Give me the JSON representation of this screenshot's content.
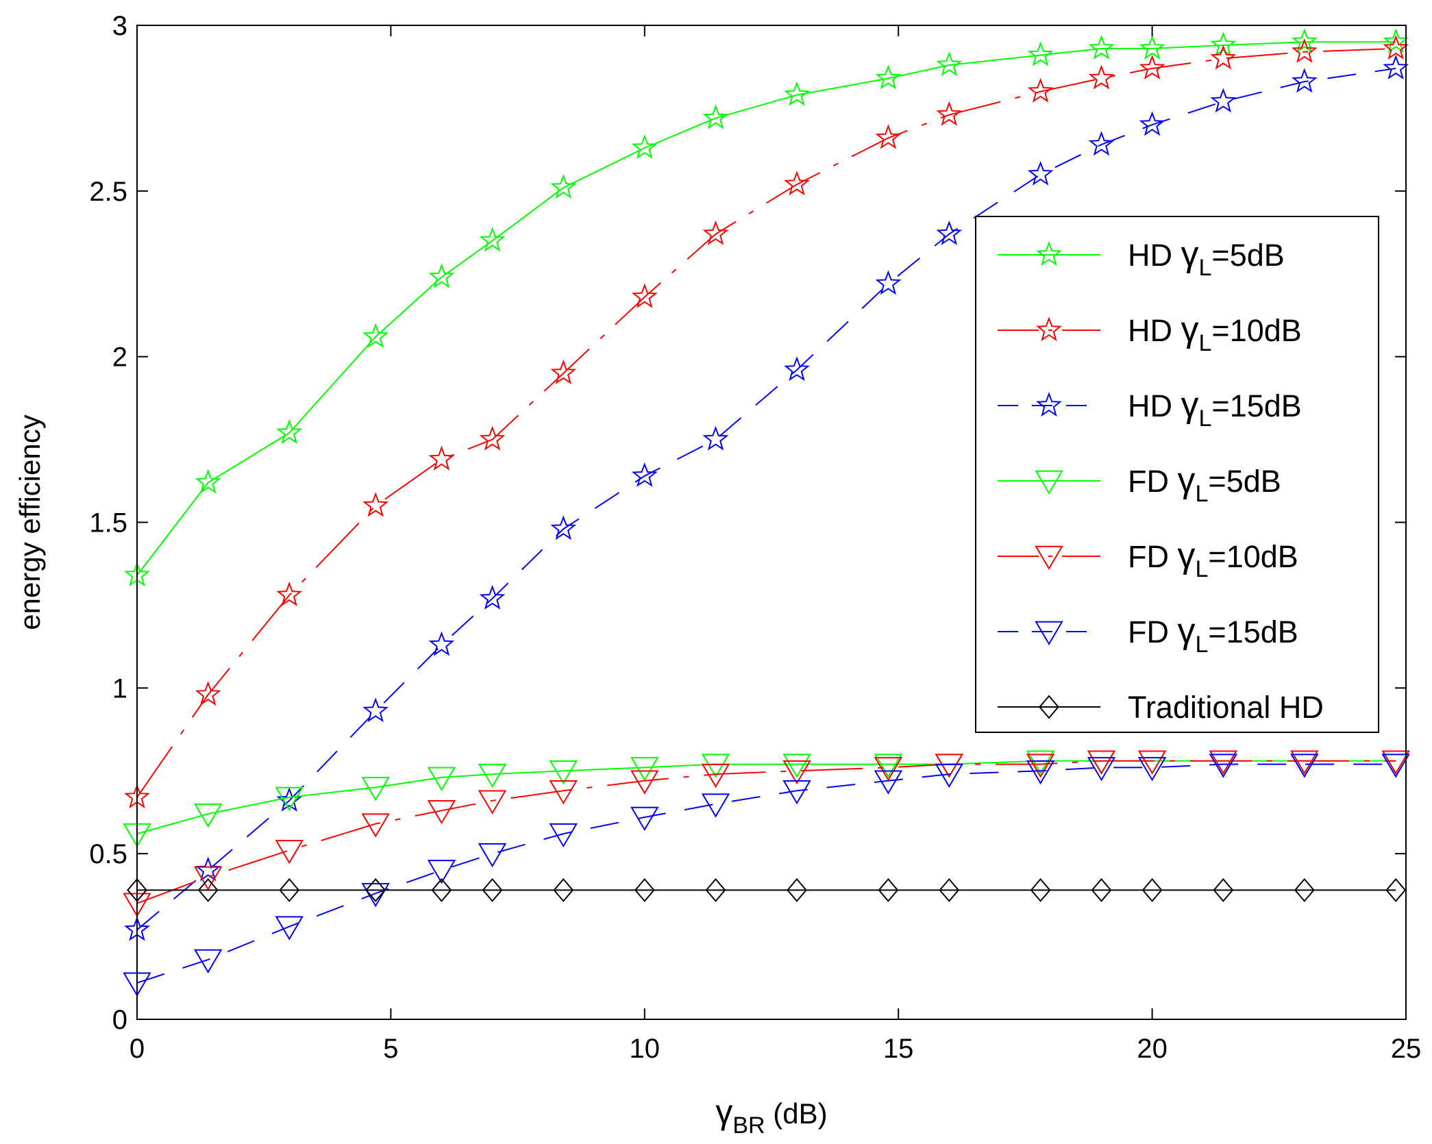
{
  "chart_data": {
    "type": "line",
    "title": "",
    "xlabel": {
      "symbol": "γ",
      "sub": "BR",
      "suffix": " (dB)"
    },
    "ylabel": "energy efficiency",
    "xlim": [
      0,
      25
    ],
    "ylim": [
      0,
      3
    ],
    "xticks": [
      0,
      5,
      10,
      15,
      20,
      25
    ],
    "xtick_labels": [
      "0",
      "5",
      "10",
      "15",
      "20",
      "25"
    ],
    "yticks": [
      0,
      0.5,
      1,
      1.5,
      2,
      2.5,
      3
    ],
    "ytick_labels": [
      "0",
      "0.5",
      "1",
      "1.5",
      "2",
      "2.5",
      "3"
    ],
    "grid": false,
    "legend_position": "right",
    "series": [
      {
        "name": "HD γL=5dB",
        "prefix": "HD ",
        "sub": "L",
        "suffix": "=5dB",
        "color": "#00ff00",
        "marker": "star",
        "dash": "solid",
        "x": [
          0,
          1.4,
          3,
          4.7,
          6,
          7,
          8.4,
          10,
          11.4,
          13,
          14.8,
          16,
          17.8,
          19,
          20,
          21.4,
          23,
          24.8
        ],
        "y": [
          1.34,
          1.62,
          1.77,
          2.06,
          2.24,
          2.35,
          2.51,
          2.63,
          2.72,
          2.79,
          2.84,
          2.88,
          2.91,
          2.93,
          2.93,
          2.94,
          2.95,
          2.95
        ]
      },
      {
        "name": "HD γL=10dB",
        "prefix": "HD ",
        "sub": "L",
        "suffix": "=10dB",
        "color": "#ff0000",
        "marker": "star",
        "dash": "dashdot",
        "x": [
          0,
          1.4,
          3,
          4.7,
          6,
          7,
          8.4,
          10,
          11.4,
          13,
          14.8,
          16,
          17.8,
          19,
          20,
          21.4,
          23,
          24.8
        ],
        "y": [
          0.67,
          0.98,
          1.28,
          1.55,
          1.69,
          1.75,
          1.95,
          2.18,
          2.37,
          2.52,
          2.66,
          2.73,
          2.8,
          2.84,
          2.87,
          2.9,
          2.92,
          2.93
        ]
      },
      {
        "name": "HD γL=15dB",
        "prefix": "HD ",
        "sub": "L",
        "suffix": "=15dB",
        "color": "#0000ff",
        "marker": "star",
        "dash": "dashed",
        "x": [
          0,
          1.4,
          3,
          4.7,
          6,
          7,
          8.4,
          10,
          11.4,
          13,
          14.8,
          16,
          17.8,
          19,
          20,
          21.4,
          23,
          24.8
        ],
        "y": [
          0.27,
          0.45,
          0.66,
          0.93,
          1.13,
          1.27,
          1.48,
          1.64,
          1.75,
          1.96,
          2.22,
          2.37,
          2.55,
          2.64,
          2.7,
          2.77,
          2.83,
          2.87
        ]
      },
      {
        "name": "FD γL=5dB",
        "prefix": "FD ",
        "sub": "L",
        "suffix": "=5dB",
        "color": "#00ff00",
        "marker": "triangle",
        "dash": "solid",
        "x": [
          0,
          1.4,
          3,
          4.7,
          6,
          7,
          8.4,
          10,
          11.4,
          13,
          14.8,
          16,
          17.8,
          19,
          20,
          21.4,
          23,
          24.8
        ],
        "y": [
          0.56,
          0.62,
          0.67,
          0.7,
          0.73,
          0.74,
          0.75,
          0.76,
          0.77,
          0.77,
          0.77,
          0.77,
          0.78,
          0.78,
          0.78,
          0.78,
          0.78,
          0.78
        ]
      },
      {
        "name": "FD γL=10dB",
        "prefix": "FD ",
        "sub": "L",
        "suffix": "=10dB",
        "color": "#ff0000",
        "marker": "triangle",
        "dash": "dashdot",
        "x": [
          0,
          1.4,
          3,
          4.7,
          6,
          7,
          8.4,
          10,
          11.4,
          13,
          14.8,
          16,
          17.8,
          19,
          20,
          21.4,
          23,
          24.8
        ],
        "y": [
          0.35,
          0.43,
          0.51,
          0.59,
          0.63,
          0.66,
          0.69,
          0.72,
          0.74,
          0.75,
          0.76,
          0.77,
          0.77,
          0.78,
          0.78,
          0.78,
          0.78,
          0.78
        ]
      },
      {
        "name": "FD γL=15dB",
        "prefix": "FD ",
        "sub": "L",
        "suffix": "=15dB",
        "color": "#0000ff",
        "marker": "triangle",
        "dash": "dashed",
        "x": [
          0,
          1.4,
          3,
          4.7,
          6,
          7,
          8.4,
          10,
          11.4,
          13,
          14.8,
          16,
          17.8,
          19,
          20,
          21.4,
          23,
          24.8
        ],
        "y": [
          0.11,
          0.18,
          0.28,
          0.38,
          0.45,
          0.5,
          0.56,
          0.61,
          0.65,
          0.69,
          0.72,
          0.74,
          0.75,
          0.76,
          0.76,
          0.77,
          0.77,
          0.77
        ]
      },
      {
        "name": "Traditional HD",
        "prefix": "Traditional HD",
        "sub": "",
        "suffix": "",
        "color": "#000000",
        "marker": "diamond",
        "dash": "solid",
        "x": [
          0,
          1.4,
          3,
          4.7,
          6,
          7,
          8.4,
          10,
          11.4,
          13,
          14.8,
          16,
          17.8,
          19,
          20,
          21.4,
          23,
          24.8
        ],
        "y": [
          0.39,
          0.39,
          0.39,
          0.39,
          0.39,
          0.39,
          0.39,
          0.39,
          0.39,
          0.39,
          0.39,
          0.39,
          0.39,
          0.39,
          0.39,
          0.39,
          0.39,
          0.39
        ]
      }
    ]
  }
}
